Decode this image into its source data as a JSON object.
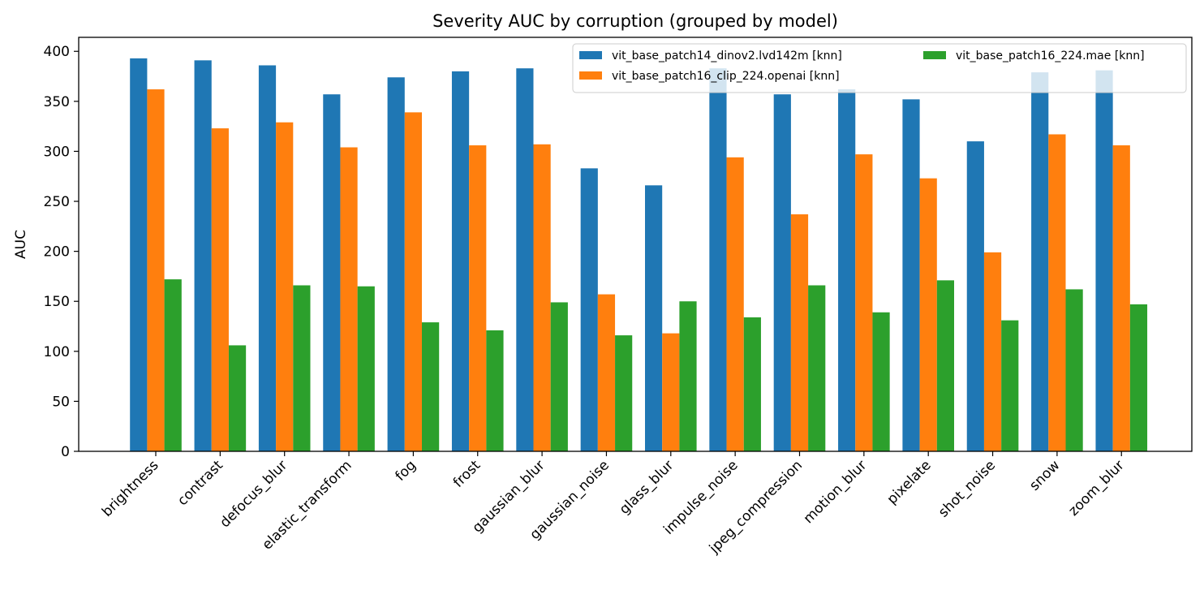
{
  "chart_data": {
    "type": "bar",
    "title": "Severity AUC by corruption (grouped by model)",
    "xlabel": "",
    "ylabel": "AUC",
    "ylim": [
      0,
      414
    ],
    "yticks": [
      0,
      50,
      100,
      150,
      200,
      250,
      300,
      350,
      400
    ],
    "grid": false,
    "legend": {
      "placement": "top-right",
      "columns": 2
    },
    "categories": [
      "brightness",
      "contrast",
      "defocus_blur",
      "elastic_transform",
      "fog",
      "frost",
      "gaussian_blur",
      "gaussian_noise",
      "glass_blur",
      "impulse_noise",
      "jpeg_compression",
      "motion_blur",
      "pixelate",
      "shot_noise",
      "snow",
      "zoom_blur"
    ],
    "series": [
      {
        "name": "vit_base_patch14_dinov2.lvd142m [knn]",
        "color": "#1f77b4",
        "values": [
          393,
          391,
          386,
          357,
          374,
          380,
          383,
          283,
          266,
          383,
          357,
          362,
          352,
          310,
          379,
          381
        ]
      },
      {
        "name": "vit_base_patch16_clip_224.openai [knn]",
        "color": "#ff7f0e",
        "values": [
          362,
          323,
          329,
          304,
          339,
          306,
          307,
          157,
          118,
          294,
          237,
          297,
          273,
          199,
          317,
          306
        ]
      },
      {
        "name": "vit_base_patch16_224.mae [knn]",
        "color": "#2ca02c",
        "values": [
          172,
          106,
          166,
          165,
          129,
          121,
          149,
          116,
          150,
          134,
          166,
          139,
          171,
          131,
          162,
          147
        ]
      }
    ]
  }
}
